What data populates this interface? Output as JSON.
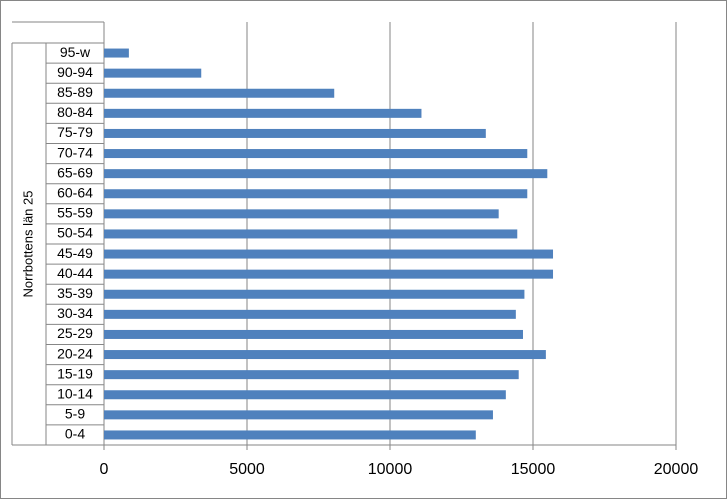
{
  "chart_data": {
    "type": "barh",
    "axis_label": "Norrbottens län 25",
    "categories": [
      "0-4",
      "5-9",
      "10-14",
      "15-19",
      "20-24",
      "25-29",
      "30-34",
      "35-39",
      "40-44",
      "45-49",
      "50-54",
      "55-59",
      "60-64",
      "65-69",
      "70-74",
      "75-79",
      "80-84",
      "85-89",
      "90-94",
      "95-w"
    ],
    "values": [
      13000,
      13600,
      14050,
      14500,
      15450,
      14650,
      14400,
      14700,
      15700,
      15700,
      14450,
      13800,
      14800,
      15500,
      14800,
      13350,
      11100,
      8050,
      3400,
      870
    ],
    "color": "#4f81bd",
    "xlim": [
      0,
      20000
    ],
    "xticks": [
      0,
      5000,
      10000,
      15000,
      20000
    ],
    "grid": true
  }
}
